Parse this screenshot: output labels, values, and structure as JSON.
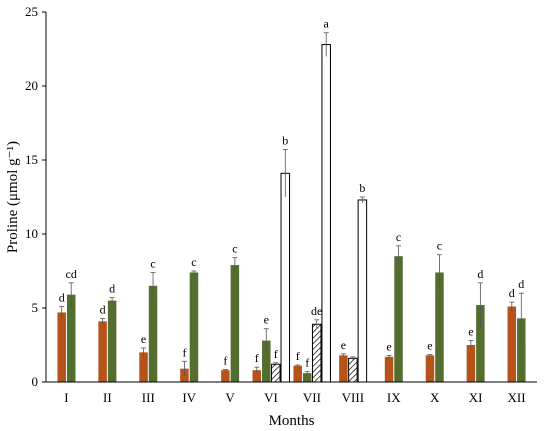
{
  "chart_data": {
    "type": "bar",
    "xlabel": "Months",
    "ylabel": "Proline (μmol g⁻¹)",
    "ylim": [
      0,
      25
    ],
    "yticks": [
      "0",
      "5",
      "10",
      "15",
      "20",
      "25"
    ],
    "categories": [
      "I",
      "II",
      "III",
      "IV",
      "V",
      "VI",
      "VII",
      "VIII",
      "IX",
      "X",
      "XI",
      "XII"
    ],
    "grid": false,
    "legend": "none",
    "series": [
      {
        "color": "#b5531a",
        "fill": "solid",
        "values": [
          4.7,
          4.1,
          2.0,
          0.9,
          0.8,
          0.8,
          1.1,
          1.8,
          1.7,
          1.8,
          2.5,
          5.1
        ],
        "errors": [
          0.4,
          0.2,
          0.3,
          0.5,
          0.05,
          0.2,
          0.05,
          0.1,
          0.1,
          0.05,
          0.3,
          0.3
        ],
        "sig": [
          "d",
          "d",
          "e",
          "f",
          "f",
          "f",
          "f",
          "e",
          "e",
          "e",
          "e",
          "d"
        ]
      },
      {
        "color": "#546e2f",
        "fill": "solid",
        "values": [
          5.9,
          5.5,
          6.5,
          7.4,
          7.9,
          2.8,
          0.6,
          null,
          8.5,
          7.4,
          5.2,
          4.3
        ],
        "errors": [
          0.8,
          0.2,
          0.9,
          0.1,
          0.5,
          0.8,
          0.1,
          null,
          0.7,
          1.2,
          1.5,
          1.7
        ],
        "sig": [
          "cd",
          "d",
          "c",
          "c",
          "c",
          "e",
          "f",
          "",
          "c",
          "c",
          "d",
          "d"
        ]
      },
      {
        "color": "#000000",
        "fill": "hatched",
        "values": [
          null,
          null,
          null,
          null,
          null,
          1.2,
          3.9,
          1.6,
          null,
          null,
          null,
          null
        ],
        "errors": [
          null,
          null,
          null,
          null,
          null,
          0.1,
          0.3,
          0.1,
          null,
          null,
          null,
          null
        ],
        "sig": [
          "",
          "",
          "",
          "",
          "",
          "f",
          "de",
          "",
          "",
          "",
          "",
          ""
        ]
      },
      {
        "color": "#ffffff",
        "fill": "white",
        "values": [
          null,
          null,
          null,
          null,
          null,
          14.1,
          22.8,
          12.3,
          null,
          null,
          null,
          null
        ],
        "errors": [
          null,
          null,
          null,
          null,
          null,
          1.6,
          0.8,
          0.2,
          null,
          null,
          null,
          null
        ],
        "sig": [
          "",
          "",
          "",
          "",
          "",
          "b",
          "a",
          "b",
          "",
          "",
          "",
          ""
        ]
      }
    ]
  }
}
